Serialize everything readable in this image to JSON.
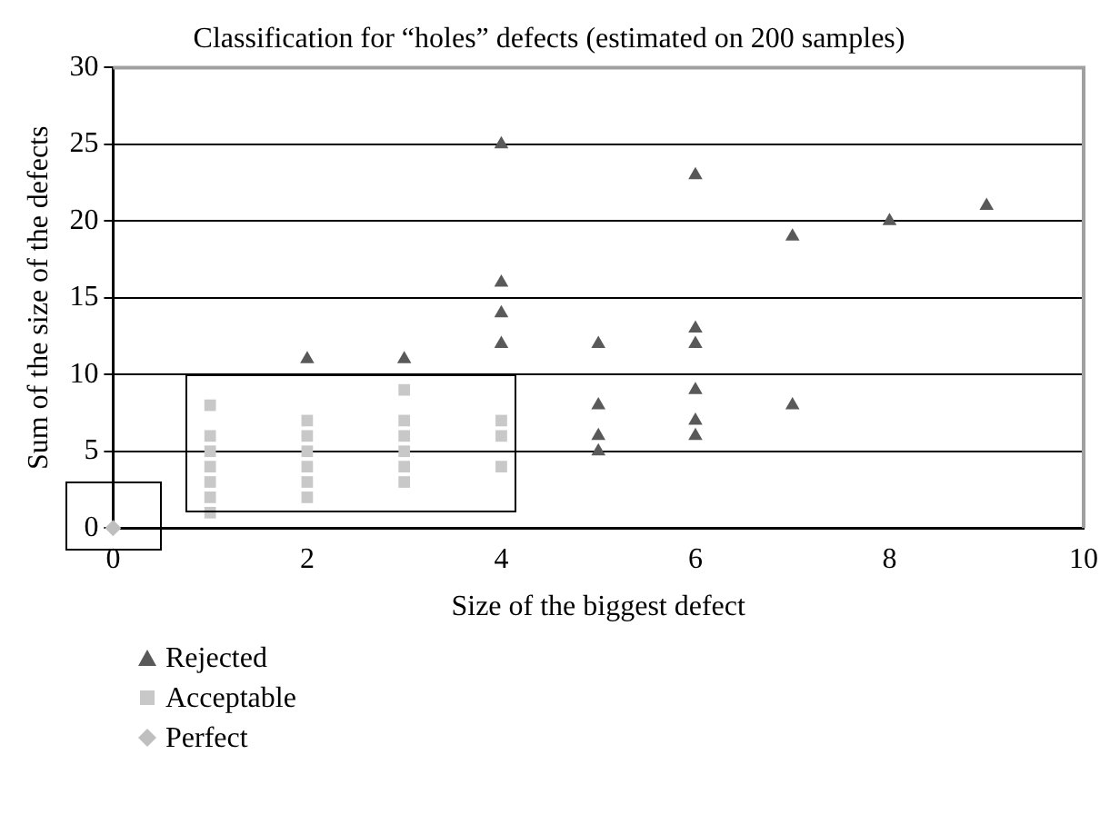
{
  "chart_data": {
    "type": "scatter",
    "title": "Classification for “holes” defects (estimated on 200 samples)",
    "xlabel": "Size of the biggest defect",
    "ylabel": "Sum of the size of the defects",
    "xlim": [
      0,
      10
    ],
    "ylim": [
      0,
      30
    ],
    "xticks": [
      0,
      2,
      4,
      6,
      8,
      10
    ],
    "yticks": [
      0,
      5,
      10,
      15,
      20,
      25,
      30
    ],
    "grid": "y",
    "legend": "bottom left",
    "series": [
      {
        "name": "Rejected",
        "color": "#595959",
        "marker": "triangle",
        "x": [
          2,
          3,
          4,
          4,
          4,
          4,
          5,
          5,
          5,
          5,
          6,
          6,
          6,
          6,
          6,
          6,
          7,
          7,
          8,
          9
        ],
        "values": [
          11,
          11,
          25,
          16,
          14,
          12,
          12,
          8,
          6,
          5,
          23,
          13,
          12,
          9,
          7,
          6,
          19,
          8,
          20,
          21
        ]
      },
      {
        "name": "Acceptable",
        "color": "#c8c8c8",
        "marker": "square",
        "x": [
          1,
          1,
          1,
          1,
          1,
          1,
          1,
          2,
          2,
          2,
          2,
          2,
          2,
          3,
          3,
          3,
          3,
          3,
          3,
          4,
          4,
          4
        ],
        "values": [
          1,
          2,
          3,
          4,
          5,
          6,
          8,
          2,
          3,
          4,
          5,
          6,
          7,
          3,
          4,
          5,
          6,
          7,
          9,
          4,
          6,
          7
        ]
      },
      {
        "name": "Perfect",
        "color": "#bfbfbf",
        "marker": "diamond",
        "x": [
          0
        ],
        "values": [
          0
        ]
      }
    ]
  }
}
